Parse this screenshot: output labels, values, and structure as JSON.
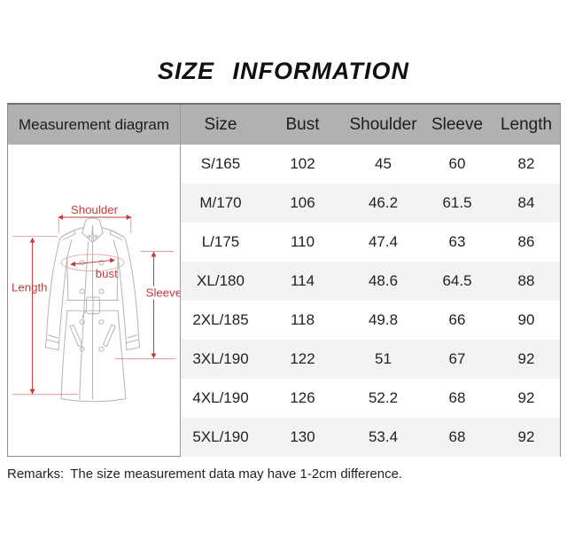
{
  "title": "SIZE INFORMATION",
  "table": {
    "diagram_header": "Measurement diagram",
    "columns": [
      "Size",
      "Bust",
      "Shoulder",
      "Sleeve",
      "Length"
    ],
    "row_keys": [
      "size",
      "bust",
      "shoulder",
      "sleeve",
      "length"
    ],
    "rows": [
      {
        "size": "S/165",
        "bust": "102",
        "shoulder": "45",
        "sleeve": "60",
        "length": "82"
      },
      {
        "size": "M/170",
        "bust": "106",
        "shoulder": "46.2",
        "sleeve": "61.5",
        "length": "84"
      },
      {
        "size": "L/175",
        "bust": "110",
        "shoulder": "47.4",
        "sleeve": "63",
        "length": "86"
      },
      {
        "size": "XL/180",
        "bust": "114",
        "shoulder": "48.6",
        "sleeve": "64.5",
        "length": "88"
      },
      {
        "size": "2XL/185",
        "bust": "118",
        "shoulder": "49.8",
        "sleeve": "66",
        "length": "90"
      },
      {
        "size": "3XL/190",
        "bust": "122",
        "shoulder": "51",
        "sleeve": "67",
        "length": "92"
      },
      {
        "size": "4XL/190",
        "bust": "126",
        "shoulder": "52.2",
        "sleeve": "68",
        "length": "92"
      },
      {
        "size": "5XL/190",
        "bust": "130",
        "shoulder": "53.4",
        "sleeve": "68",
        "length": "92"
      }
    ]
  },
  "diagram": {
    "labels": {
      "shoulder": "Shoulder",
      "bust": "bust",
      "length": "Length",
      "sleeve": "Sleeve"
    },
    "annotation_color": "#c43b3b",
    "coat_line_color": "#b4b4b4"
  },
  "remarks": {
    "label": "Remarks:",
    "text": "The size measurement data may have 1-2cm difference."
  },
  "colors": {
    "header_bg": "#b1b1b1",
    "row_stripe": "#f3f3f3",
    "border": "#8f8f8f",
    "title_text": "#111111"
  }
}
